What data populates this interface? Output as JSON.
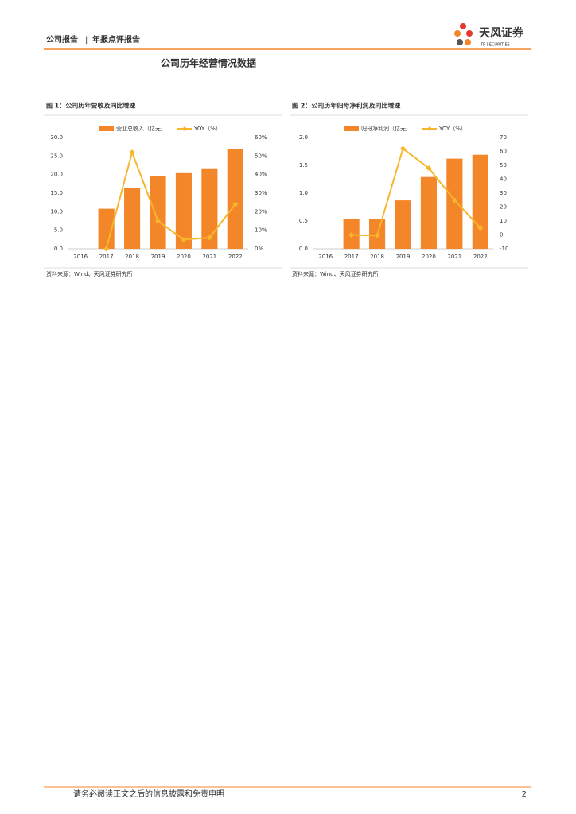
{
  "header": {
    "left": "公司报告",
    "right": "年报点评报告"
  },
  "logo": {
    "name": "天风证券",
    "english": "TF SECURITIES"
  },
  "section_title": "公司历年经营情况数据",
  "chart_data": [
    {
      "type": "bar",
      "title": "图 1：公司历年营收及同比增速",
      "source": "资料来源：Wind、天风证券研究所",
      "categories": [
        "2016",
        "2017",
        "2018",
        "2019",
        "2020",
        "2021",
        "2022"
      ],
      "series": [
        {
          "name": "营业总收入（亿元）",
          "type": "bar",
          "color": "#f4862a",
          "values": [
            null,
            10.8,
            16.5,
            19.5,
            20.4,
            21.7,
            27.0
          ]
        },
        {
          "name": "YOY（%）",
          "type": "line",
          "axis": "y2",
          "color": "#f8b62d",
          "values": [
            null,
            0,
            52,
            15,
            5,
            6,
            24
          ]
        }
      ],
      "ylim": [
        0,
        30
      ],
      "yticks": [
        {
          "value": 0,
          "label": "0.0"
        },
        {
          "value": 5,
          "label": "5.0"
        },
        {
          "value": 10,
          "label": "10.0"
        },
        {
          "value": 15,
          "label": "15.0"
        },
        {
          "value": 20,
          "label": "20.0"
        },
        {
          "value": 25,
          "label": "25.0"
        },
        {
          "value": 30,
          "label": "30.0"
        }
      ],
      "y2lim": [
        0,
        60
      ],
      "y2ticks": [
        {
          "value": 0,
          "label": "0%"
        },
        {
          "value": 10,
          "label": "10%"
        },
        {
          "value": 20,
          "label": "20%"
        },
        {
          "value": 30,
          "label": "30%"
        },
        {
          "value": 40,
          "label": "40%"
        },
        {
          "value": 50,
          "label": "50%"
        },
        {
          "value": 60,
          "label": "60%"
        }
      ],
      "legend": "top",
      "grid": false
    },
    {
      "type": "bar",
      "title": "图 2：公司历年归母净利润及同比增速",
      "source": "资料来源：Wind、天风证券研究所",
      "categories": [
        "2016",
        "2017",
        "2018",
        "2019",
        "2020",
        "2021",
        "2022"
      ],
      "series": [
        {
          "name": "归母净利润（亿元）",
          "type": "bar",
          "color": "#f4862a",
          "values": [
            null,
            0.54,
            0.54,
            0.87,
            1.29,
            1.62,
            1.69
          ]
        },
        {
          "name": "YOY（%）",
          "type": "line",
          "axis": "y2",
          "color": "#f8b62d",
          "values": [
            null,
            0,
            -0.5,
            62,
            48,
            25,
            5
          ]
        }
      ],
      "ylim": [
        0,
        2
      ],
      "yticks": [
        {
          "value": 0,
          "label": "0.0"
        },
        {
          "value": 0.5,
          "label": "0.5"
        },
        {
          "value": 1,
          "label": "1.0"
        },
        {
          "value": 1.5,
          "label": "1.5"
        },
        {
          "value": 2,
          "label": "2.0"
        }
      ],
      "y2lim": [
        -10,
        70
      ],
      "y2ticks": [
        -10,
        0,
        10,
        20,
        30,
        40,
        50,
        60,
        70
      ],
      "y2tick_labels": null,
      "legend": "top",
      "grid": false
    }
  ],
  "footer": {
    "disclaimer": "请务必阅读正文之后的信息披露和免责申明",
    "page": 2
  }
}
